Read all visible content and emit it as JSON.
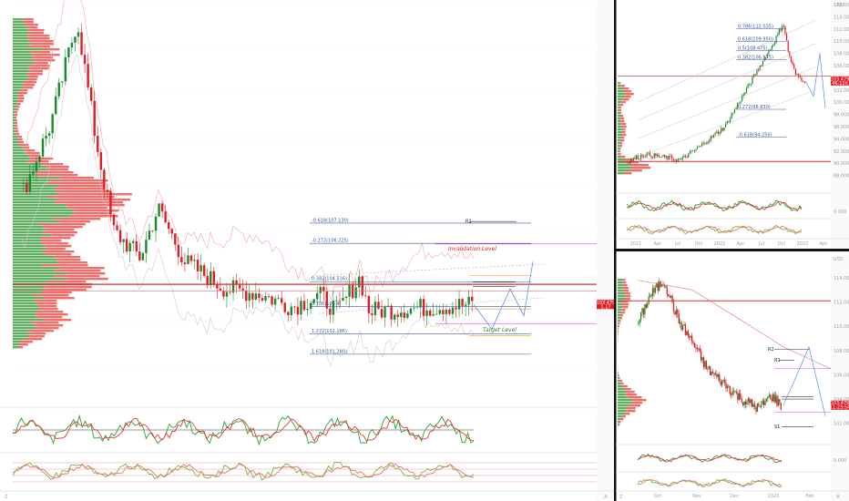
{
  "chart_data": [
    {
      "type": "candlestick",
      "panel": "main",
      "ylim": [
        99.0,
        117.0
      ],
      "y_ticks": [],
      "ohlc": [],
      "fib_levels": [
        {
          "label": "-0.618(107.130)",
          "value": 107.13
        },
        {
          "label": "-0.272(106.225)",
          "value": 106.225
        },
        {
          "label": "0.382(104.516)",
          "value": 104.516
        },
        {
          "label": "0.786(103.4)",
          "value": 103.4
        },
        {
          "label": "1.272(102.186)",
          "value": 102.186
        },
        {
          "label": "1.618(101.280)",
          "value": 101.28
        }
      ],
      "annotations": {
        "invalidation": "Invalidation Level",
        "target": "Target Level",
        "r1": "R1"
      },
      "last_price": "103.479",
      "last_price_sub": "1.17"
    },
    {
      "type": "candlestick",
      "panel": "top-right",
      "currency": "USD",
      "ylim": [
        86.0,
        116.0
      ],
      "y_ticks": [
        "116.000",
        "114.000",
        "112.000",
        "110.000",
        "108.000",
        "106.000",
        "104.000",
        "102.000",
        "100.000",
        "98.000",
        "96.000",
        "94.000",
        "92.000",
        "90.000",
        "88.000"
      ],
      "x_ticks": [
        "2021",
        "Apr",
        "Jul",
        "Oct",
        "2022",
        "Apr",
        "Jul",
        "Oct",
        "2023",
        "Apr"
      ],
      "fib_levels": [
        {
          "label": "0.786(112.035)",
          "value": 112.035
        },
        {
          "label": "0.618(109.950)",
          "value": 109.95
        },
        {
          "label": "0.5(108.475)",
          "value": 108.475
        },
        {
          "label": "0.382(106.975)",
          "value": 106.975
        },
        {
          "label": "0.272(98.830)",
          "value": 98.83
        },
        {
          "label": "-0.618(94.250)",
          "value": 94.25
        }
      ],
      "last_price": "103.479",
      "last_price_sub": "46:12h",
      "sub_ticks": [
        "0.000"
      ]
    },
    {
      "type": "candlestick",
      "panel": "bottom-right",
      "currency": "USD",
      "ylim": [
        101.0,
        115.5
      ],
      "y_ticks": [
        "114.000",
        "112.000",
        "110.000",
        "108.000",
        "106.000",
        "104.000",
        "102.000"
      ],
      "x_ticks": [
        "Oct",
        "Nov",
        "Dec",
        "2023",
        "Feb"
      ],
      "annotations": {
        "r1": "R1",
        "r2": "R2",
        "s1": "S1"
      },
      "last_price": "103.479",
      "last_price_sub": "11:23:54",
      "sub_ticks": [
        "0.000"
      ]
    }
  ],
  "footer": {
    "a_label": "A",
    "z_label": "Z"
  }
}
